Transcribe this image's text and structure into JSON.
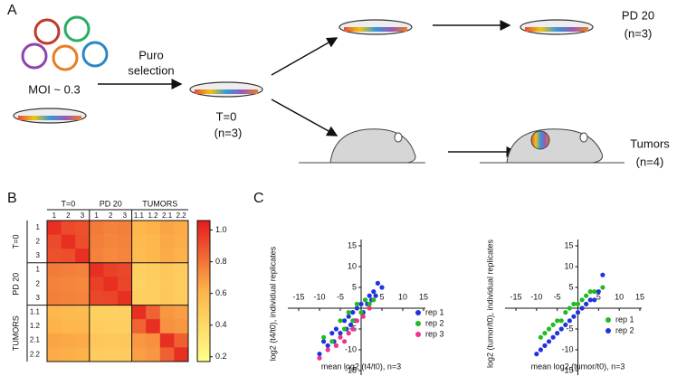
{
  "panel_a": {
    "label": "A",
    "moi": "MOI ~ 0.3",
    "selection": [
      "Puro",
      "selection"
    ],
    "t0": "T=0",
    "t0_n": "(n=3)",
    "pd20": "PD 20",
    "pd20_n": "(n=3)",
    "tumors": "Tumors",
    "tumors_n": "(n=4)"
  },
  "panel_b_label": "B",
  "panel_c_label": "C",
  "chart_data": [
    {
      "type": "heatmap",
      "column_groups": [
        "T=0",
        "PD 20",
        "TUMORS"
      ],
      "row_groups": [
        "T=0",
        "PD 20",
        "TUMORS"
      ],
      "columns": [
        "1",
        "2",
        "3",
        "1",
        "2",
        "3",
        "1.1",
        "1.2",
        "2.1",
        "2.2"
      ],
      "rows": [
        "1",
        "2",
        "3",
        "1",
        "2",
        "3",
        "1.1",
        "1.2",
        "2.1",
        "2.2"
      ],
      "values": [
        [
          1.0,
          0.92,
          0.9,
          0.78,
          0.76,
          0.77,
          0.6,
          0.62,
          0.66,
          0.64
        ],
        [
          0.92,
          1.0,
          0.91,
          0.77,
          0.75,
          0.76,
          0.58,
          0.6,
          0.65,
          0.63
        ],
        [
          0.9,
          0.91,
          1.0,
          0.76,
          0.74,
          0.75,
          0.57,
          0.6,
          0.64,
          0.62
        ],
        [
          0.78,
          0.77,
          0.76,
          1.0,
          0.95,
          0.93,
          0.45,
          0.47,
          0.5,
          0.48
        ],
        [
          0.76,
          0.75,
          0.74,
          0.95,
          1.0,
          0.94,
          0.44,
          0.46,
          0.49,
          0.47
        ],
        [
          0.77,
          0.76,
          0.75,
          0.93,
          0.94,
          1.0,
          0.45,
          0.46,
          0.5,
          0.48
        ],
        [
          0.6,
          0.58,
          0.57,
          0.45,
          0.44,
          0.45,
          1.0,
          0.85,
          0.7,
          0.68
        ],
        [
          0.62,
          0.6,
          0.6,
          0.47,
          0.46,
          0.46,
          0.85,
          1.0,
          0.72,
          0.7
        ],
        [
          0.66,
          0.65,
          0.64,
          0.5,
          0.49,
          0.5,
          0.7,
          0.72,
          1.0,
          0.86
        ],
        [
          0.64,
          0.63,
          0.62,
          0.48,
          0.47,
          0.48,
          0.68,
          0.7,
          0.86,
          1.0
        ]
      ],
      "colorbar_lim": [
        0.17,
        1.06
      ],
      "colorbar_ticks": [
        {
          "value": 1.0,
          "label": "1.0"
        },
        0.8,
        0.6,
        0.4,
        0.2
      ]
    },
    {
      "type": "scatter",
      "xlabel": "mean log2 (t4/t0), n=3",
      "ylabel": "log2 (t4/t0), individual replicates",
      "xlim": [
        -15,
        15
      ],
      "ylim": [
        -15,
        15
      ],
      "xticks": [
        -15,
        -10,
        -5,
        5,
        10,
        15
      ],
      "yticks": [
        15,
        10,
        5,
        -5,
        -10,
        -15
      ],
      "series": [
        {
          "name": "rep 1",
          "color": "#2233dd",
          "x": [
            -10,
            -9,
            -8,
            -7,
            -6.5,
            -6,
            -5,
            -4,
            -3.5,
            -3,
            -2.5,
            -2,
            -1.5,
            -1,
            0,
            0.5,
            1,
            1.5,
            2,
            2.5,
            3,
            3.5,
            4,
            5
          ],
          "y": [
            -11,
            -8,
            -9,
            -6,
            -8,
            -5,
            -6,
            -3,
            -5,
            -2,
            -4,
            -1,
            -3,
            0,
            1,
            -1,
            2,
            1,
            3,
            2,
            4,
            3,
            6,
            5
          ]
        },
        {
          "name": "rep 2",
          "color": "#22bb22",
          "x": [
            -9,
            -7,
            -5,
            -4,
            -3,
            -2,
            -1,
            0,
            1,
            2,
            3
          ],
          "y": [
            -7,
            -8,
            -3,
            -5,
            -1,
            -3,
            1,
            -1,
            2,
            1,
            2
          ]
        },
        {
          "name": "rep 3",
          "color": "#ee3388",
          "x": [
            -10,
            -8,
            -6,
            -5,
            -4,
            -3,
            -2,
            -1,
            0.5,
            2
          ],
          "y": [
            -12,
            -10,
            -9,
            -7,
            -8,
            -6,
            -5,
            -3,
            -2,
            0
          ]
        }
      ]
    },
    {
      "type": "scatter",
      "xlabel": "mean log2 (tumor/t0), n=3",
      "ylabel": "log2 (tumor/t0), individual replicates",
      "xlim": [
        -15,
        15
      ],
      "ylim": [
        -15,
        15
      ],
      "xticks": [
        -15,
        -10,
        -5,
        5,
        10,
        15
      ],
      "yticks": [
        15,
        10,
        5,
        -5,
        -10,
        -15
      ],
      "series": [
        {
          "name": "rep 1",
          "color": "#22bb22",
          "x": [
            -9,
            -8,
            -7,
            -6,
            -5,
            -4,
            -3,
            -2,
            -1,
            0,
            1,
            2,
            3,
            4,
            6
          ],
          "y": [
            -7,
            -6,
            -5,
            -4,
            -3,
            -3,
            -1,
            0,
            1,
            1,
            2,
            3,
            4,
            4,
            5
          ]
        },
        {
          "name": "rep 2",
          "color": "#2233dd",
          "x": [
            -10,
            -9,
            -8,
            -7,
            -6,
            -5,
            -4,
            -3,
            -2,
            -1,
            0,
            1,
            2,
            3,
            4,
            5,
            6
          ],
          "y": [
            -11,
            -10,
            -9,
            -8,
            -7,
            -6,
            -5,
            -4,
            -3,
            -2,
            -1,
            0,
            1,
            2,
            2,
            4,
            8
          ]
        }
      ]
    }
  ]
}
